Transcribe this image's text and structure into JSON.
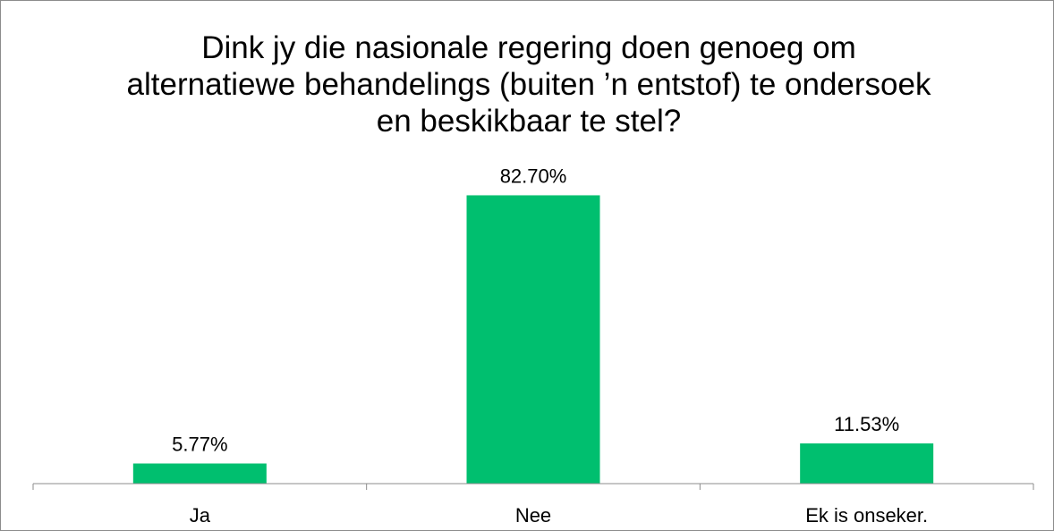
{
  "chart_data": {
    "type": "bar",
    "title": "Dink jy die nasionale regering doen genoeg om alternatiewe behandelings (buiten ’n entstof) te ondersoek en beskikbaar te stel?",
    "categories": [
      "Ja",
      "Nee",
      "Ek is onseker."
    ],
    "values": [
      5.77,
      82.7,
      11.53
    ],
    "data_labels": [
      "5.77%",
      "82.70%",
      "11.53%"
    ],
    "ylim": [
      0,
      100
    ],
    "grid": false,
    "legend": "none",
    "bar_color": "#00BF6F",
    "axis_color": "#8c8c8c"
  }
}
